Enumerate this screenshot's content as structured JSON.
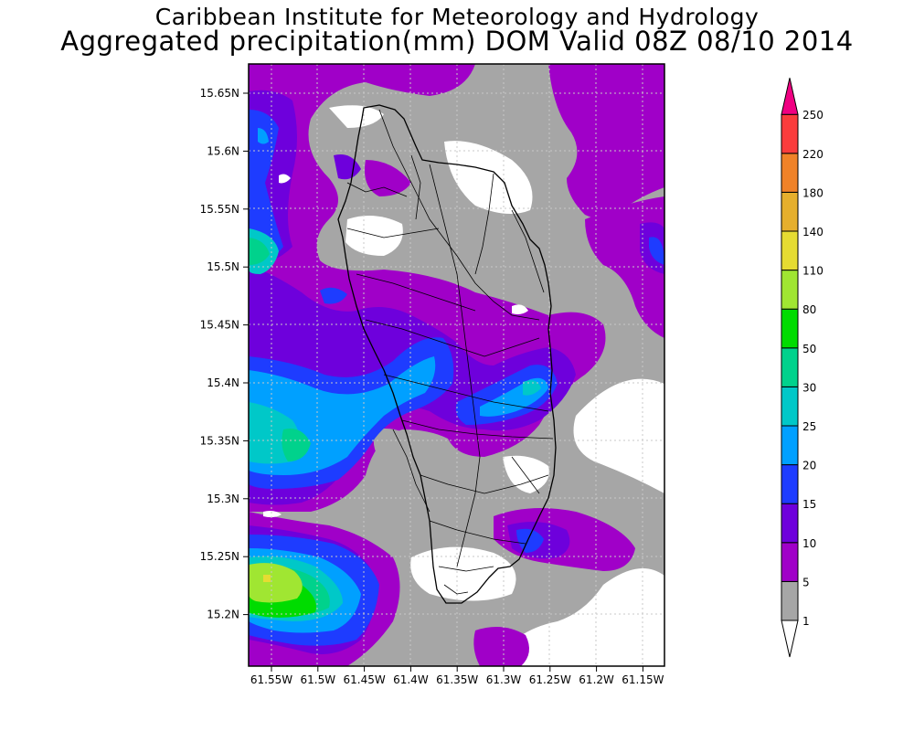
{
  "title_line1": "Caribbean Institute for Meteorology and Hydrology",
  "title_line2": "Aggregated precipitation(mm) DOM Valid 08Z 08/10 2014",
  "map": {
    "lat_ticks": [
      "15.65N",
      "15.6N",
      "15.55N",
      "15.5N",
      "15.45N",
      "15.4N",
      "15.35N",
      "15.3N",
      "15.25N",
      "15.2N"
    ],
    "lon_ticks": [
      "61.55W",
      "61.5W",
      "61.45W",
      "61.4W",
      "61.35W",
      "61.3W",
      "61.25W",
      "61.2W",
      "61.15W"
    ],
    "grid": "dotted"
  },
  "colorbar": {
    "labels": [
      "1",
      "5",
      "10",
      "15",
      "20",
      "25",
      "30",
      "50",
      "80",
      "110",
      "140",
      "180",
      "220",
      "250"
    ],
    "colors": [
      "#ffffff",
      "#a6a6a6",
      "#a000c8",
      "#6e00dc",
      "#1e3cff",
      "#00a0ff",
      "#00c8c8",
      "#00d28c",
      "#00dc00",
      "#a0e632",
      "#e6dc32",
      "#e6af2d",
      "#f08228",
      "#fa3c3c",
      "#f00082"
    ]
  }
}
